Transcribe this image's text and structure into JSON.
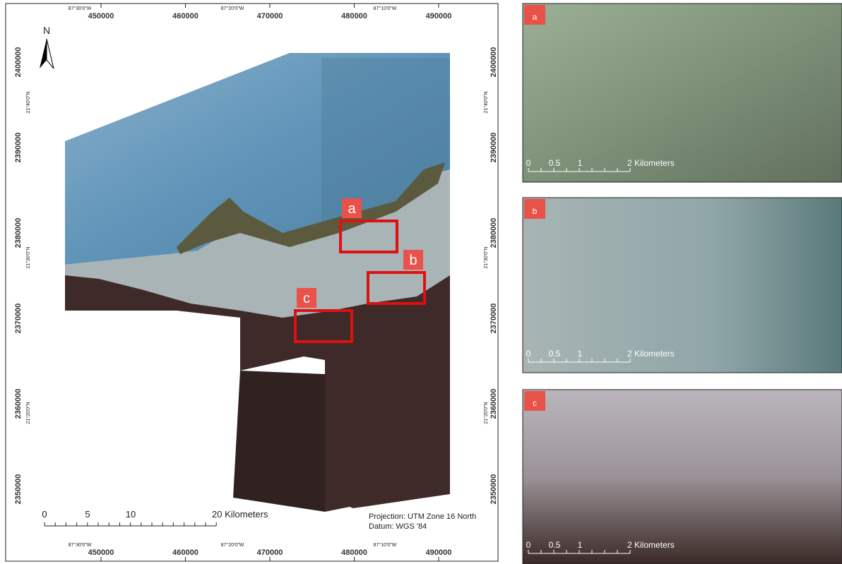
{
  "north_arrow": "N",
  "utm_x_labels": [
    450000,
    460000,
    470000,
    480000,
    490000
  ],
  "geo_x_labels": [
    "87°30'0\"W",
    "87°20'0\"W",
    "87°10'0\"W"
  ],
  "utm_y_labels": [
    2400000,
    2390000,
    2380000,
    2370000,
    2360000,
    2350000
  ],
  "geo_y_labels": [
    "21°40'0\"N",
    "21°30'0\"N",
    "21°20'0\"N"
  ],
  "scale_bar": {
    "ticks": [
      0,
      5,
      10
    ],
    "end_label": "20 Kilometers"
  },
  "projection": "Projection: UTM Zone 16 North",
  "datum": "Datum: WGS '84",
  "study_areas": [
    "a",
    "b",
    "c"
  ],
  "insets": [
    {
      "label": "a",
      "scale_ticks": [
        0,
        0.5,
        1
      ],
      "scale_end": "2 Kilometers"
    },
    {
      "label": "b",
      "scale_ticks": [
        0,
        0.5,
        1
      ],
      "scale_end": "2 Kilometers"
    },
    {
      "label": "c",
      "scale_ticks": [
        0,
        0.5,
        1
      ],
      "scale_end": "2 Kilometers"
    }
  ]
}
